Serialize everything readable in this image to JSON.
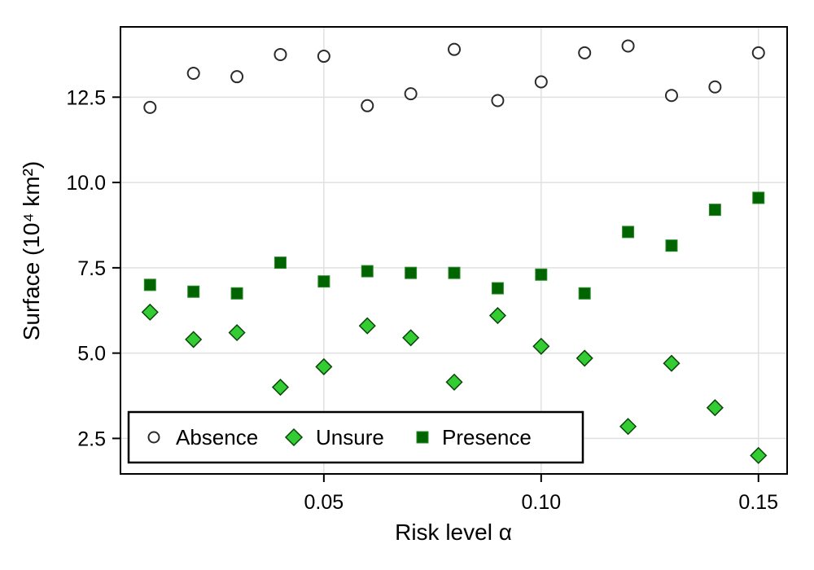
{
  "figure": {
    "background": "#ffffff",
    "spine_color": "#000000",
    "grid_color": "#e0e0e0",
    "tick_color": "#000000"
  },
  "chart_data": {
    "type": "scatter",
    "title": "",
    "xlabel": "Risk level α",
    "ylabel": "Surface (10⁴ km²)",
    "x": [
      0.01,
      0.02,
      0.03,
      0.04,
      0.05,
      0.06,
      0.07,
      0.08,
      0.09,
      0.1,
      0.11,
      0.12,
      0.13,
      0.14,
      0.15
    ],
    "series": [
      {
        "name": "Absence",
        "marker": "circle",
        "fill": "#ffffff",
        "stroke": "#2b2b2b",
        "values": [
          12.2,
          13.2,
          13.1,
          13.75,
          13.7,
          12.25,
          12.6,
          13.9,
          12.4,
          12.95,
          13.8,
          14.0,
          12.55,
          12.8,
          13.8
        ]
      },
      {
        "name": "Unsure",
        "marker": "diamond",
        "fill": "#33cc33",
        "stroke": "#0a450a",
        "values": [
          6.2,
          5.4,
          5.6,
          4.0,
          4.6,
          5.8,
          5.45,
          4.15,
          6.1,
          5.2,
          4.85,
          2.85,
          4.7,
          3.4,
          2.0
        ]
      },
      {
        "name": "Presence",
        "marker": "square",
        "fill": "#006400",
        "stroke": "#2e8b2e",
        "values": [
          7.0,
          6.8,
          6.75,
          7.65,
          7.1,
          7.4,
          7.35,
          7.35,
          6.9,
          7.3,
          6.75,
          8.55,
          8.15,
          9.2,
          9.55
        ]
      }
    ],
    "xlim": [
      0.0032,
      0.1566
    ],
    "ylim": [
      1.46,
      14.56
    ],
    "xticks": {
      "values": [
        0.05,
        0.1,
        0.15
      ],
      "labels": [
        "0.05",
        "0.10",
        "0.15"
      ]
    },
    "yticks": {
      "values": [
        2.5,
        5.0,
        7.5,
        10.0,
        12.5
      ],
      "labels": [
        "2.5",
        "5.0",
        "7.5",
        "10.0",
        "12.5"
      ]
    },
    "grid": true,
    "legend": {
      "position": "bottom-left-inside",
      "entries": [
        {
          "label": "Absence",
          "marker": "circle",
          "fill": "#ffffff",
          "stroke": "#2b2b2b"
        },
        {
          "label": "Unsure",
          "marker": "diamond",
          "fill": "#33cc33",
          "stroke": "#0a450a"
        },
        {
          "label": "Presence",
          "marker": "square",
          "fill": "#006400",
          "stroke": "#2e8b2e"
        }
      ]
    }
  }
}
